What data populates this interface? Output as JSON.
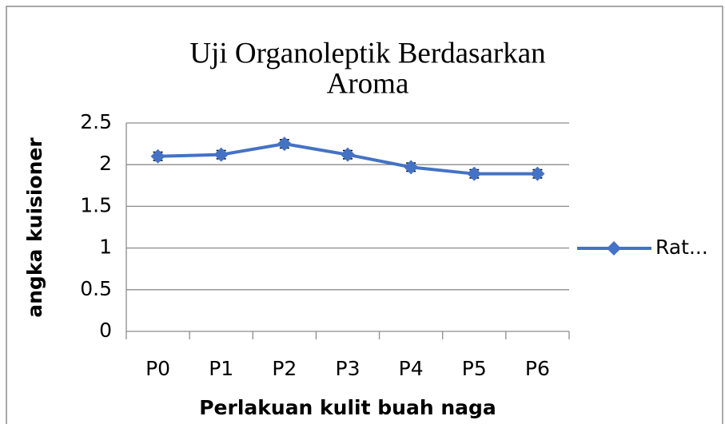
{
  "chart_data": {
    "type": "line",
    "title": "Uji Organoleptik Berdasarkan",
    "subtitle": "Aroma",
    "x_label": "Perlakuan kulit buah naga",
    "y_label": "angka kuisioner",
    "categories": [
      "P0",
      "P1",
      "P2",
      "P3",
      "P4",
      "P5",
      "P6"
    ],
    "series": [
      {
        "name": "Rat...",
        "color": "#4472c4",
        "values": [
          2.1,
          2.12,
          2.25,
          2.12,
          1.97,
          1.89,
          1.89
        ],
        "errors": [
          0.05,
          0.05,
          0.05,
          0.05,
          0.05,
          0.05,
          0.05
        ]
      }
    ],
    "ylim": [
      0,
      2.5
    ],
    "yticks": [
      0,
      {
        "value": 0.5,
        "label": "0.5"
      },
      {
        "value": 1,
        "label": "1"
      },
      {
        "value": 1.5,
        "label": "1.5"
      },
      2,
      {
        "value": 2.5,
        "label": "2.5"
      }
    ],
    "grid": true,
    "legend": "right"
  }
}
